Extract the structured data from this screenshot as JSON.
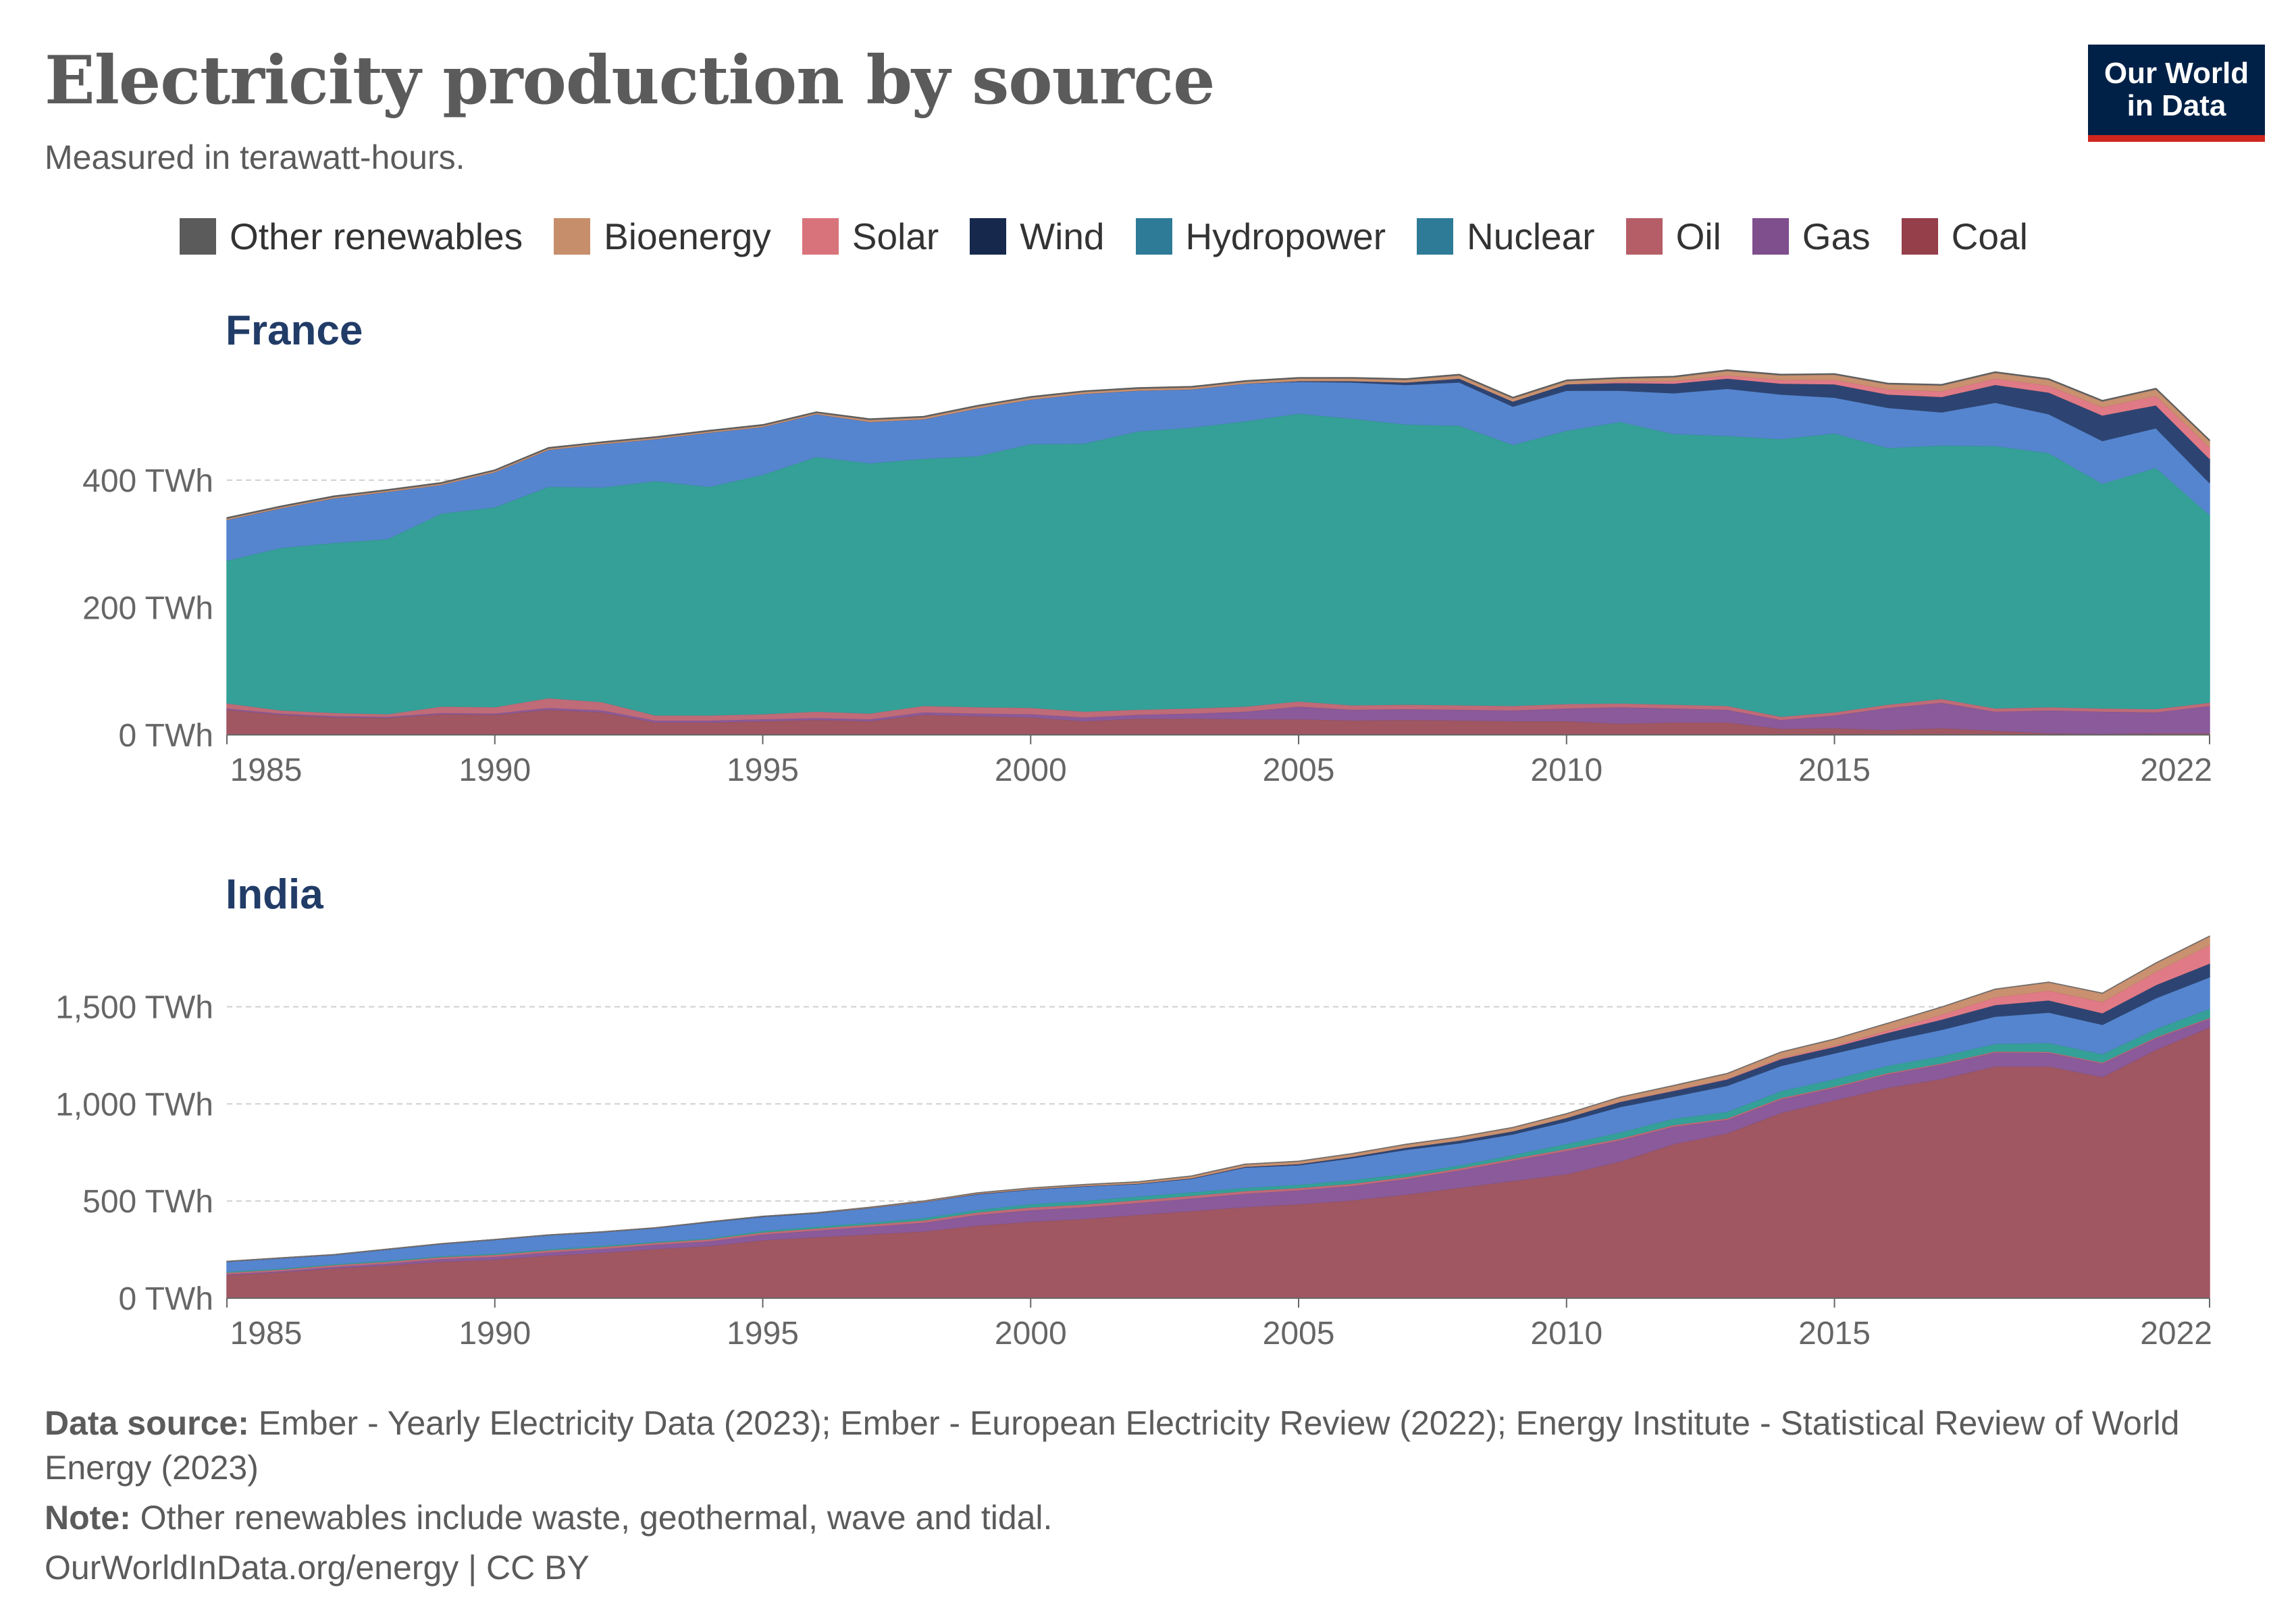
{
  "header": {
    "title": "Electricity production by source",
    "subtitle": "Measured in terawatt-hours."
  },
  "logo": {
    "line1": "Our World",
    "line2": "in Data",
    "bg": "#002147",
    "accent": "#ce261e"
  },
  "legend": [
    {
      "name": "Other renewables",
      "color": "#5b5b5b"
    },
    {
      "name": "Bioenergy",
      "color": "#c78e6b"
    },
    {
      "name": "Solar",
      "color": "#d9737b"
    },
    {
      "name": "Wind",
      "color": "#16294d"
    },
    {
      "name": "Hydropower",
      "color": "#2e7b97"
    },
    {
      "name": "Nuclear",
      "color": "#2e7b97"
    },
    {
      "name": "Oil",
      "color": "#b55e67"
    },
    {
      "name": "Gas",
      "color": "#7e4e8d"
    },
    {
      "name": "Coal",
      "color": "#943f4a"
    }
  ],
  "footer": {
    "source_label": "Data source:",
    "source_text": "Ember - Yearly Electricity Data (2023); Ember - European Electricity Review (2022); Energy Institute - Statistical Review of World Energy (2023)",
    "note_label": "Note:",
    "note_text": "Other renewables include waste, geothermal, wave and tidal.",
    "credit": "OurWorldInData.org/energy | CC BY"
  },
  "chart_data": [
    {
      "type": "area",
      "stacked": true,
      "title": "France",
      "xlabel": "",
      "ylabel": "",
      "x": [
        1985,
        1986,
        1987,
        1988,
        1989,
        1990,
        1991,
        1992,
        1993,
        1994,
        1995,
        1996,
        1997,
        1998,
        1999,
        2000,
        2001,
        2002,
        2003,
        2004,
        2005,
        2006,
        2007,
        2008,
        2009,
        2010,
        2011,
        2012,
        2013,
        2014,
        2015,
        2016,
        2017,
        2018,
        2019,
        2020,
        2021,
        2022
      ],
      "x_ticks": [
        "1985",
        "1990",
        "1995",
        "2000",
        "2005",
        "2010",
        "2015",
        "2022"
      ],
      "x_tick_values": [
        1985,
        1990,
        1995,
        2000,
        2005,
        2010,
        2015,
        2022
      ],
      "xlim": [
        1985,
        2022
      ],
      "ylim": [
        0,
        560
      ],
      "y_ticks": [
        0,
        200,
        400
      ],
      "y_tick_labels": [
        "0 TWh",
        "200 TWh",
        "400 TWh"
      ],
      "grid": true,
      "series": [
        {
          "name": "Coal",
          "color": "#a05762",
          "values": [
            40,
            32,
            28,
            27,
            33,
            32,
            40,
            36,
            20,
            20,
            22,
            24,
            22,
            32,
            30,
            28,
            22,
            26,
            26,
            25,
            25,
            23,
            24,
            23,
            22,
            22,
            18,
            20,
            20,
            10,
            11,
            8,
            11,
            7,
            3,
            2,
            3,
            3
          ]
        },
        {
          "name": "Gas",
          "color": "#8a5a9a",
          "values": [
            2,
            2,
            2,
            2,
            2,
            2,
            3,
            3,
            3,
            3,
            3,
            3,
            3,
            4,
            4,
            5,
            6,
            6,
            8,
            12,
            20,
            17,
            17,
            17,
            17,
            20,
            26,
            22,
            20,
            14,
            20,
            35,
            40,
            30,
            36,
            35,
            33,
            43
          ]
        },
        {
          "name": "Oil",
          "color": "#c06b78",
          "values": [
            8,
            5,
            5,
            4,
            10,
            10,
            15,
            13,
            8,
            8,
            8,
            10,
            9,
            10,
            10,
            10,
            9,
            8,
            8,
            8,
            8,
            7,
            7,
            7,
            7,
            7,
            6,
            6,
            6,
            5,
            5,
            5,
            6,
            5,
            5,
            5,
            5,
            5
          ]
        },
        {
          "name": "Nuclear",
          "color": "#35a098",
          "values": [
            224,
            255,
            267,
            275,
            303,
            314,
            332,
            337,
            368,
            359,
            376,
            400,
            393,
            388,
            394,
            414,
            421,
            437,
            441,
            448,
            452,
            450,
            440,
            439,
            410,
            429,
            442,
            425,
            424,
            436,
            438,
            403,
            398,
            412,
            399,
            353,
            379,
            295
          ]
        },
        {
          "name": "Hydropower",
          "color": "#5685cf",
          "values": [
            64,
            62,
            70,
            74,
            45,
            55,
            58,
            68,
            66,
            85,
            75,
            67,
            65,
            62,
            75,
            70,
            78,
            64,
            60,
            59,
            50,
            57,
            62,
            68,
            60,
            63,
            49,
            64,
            74,
            70,
            56,
            63,
            52,
            68,
            61,
            67,
            62,
            50
          ]
        },
        {
          "name": "Wind",
          "color": "#2d4472",
          "values": [
            0,
            0,
            0,
            0,
            0,
            0,
            0,
            0,
            0,
            0,
            0,
            0,
            0,
            0,
            0,
            0,
            0,
            0,
            0,
            0,
            1,
            2,
            4,
            6,
            8,
            10,
            12,
            15,
            16,
            17,
            21,
            21,
            24,
            28,
            34,
            40,
            36,
            38
          ]
        },
        {
          "name": "Solar",
          "color": "#e07a86",
          "values": [
            0,
            0,
            0,
            0,
            0,
            0,
            0,
            0,
            0,
            0,
            0,
            0,
            0,
            0,
            0,
            0,
            0,
            0,
            0,
            0,
            0,
            0,
            0,
            0,
            0,
            0,
            2,
            4,
            5,
            6,
            7,
            8,
            9,
            10,
            11,
            13,
            15,
            18
          ]
        },
        {
          "name": "Bioenergy",
          "color": "#c9916f",
          "values": [
            2,
            2,
            2,
            2,
            2,
            2,
            2,
            2,
            2,
            2,
            2,
            2,
            3,
            3,
            3,
            3,
            3,
            3,
            3,
            3,
            4,
            4,
            4,
            5,
            5,
            5,
            5,
            6,
            7,
            7,
            8,
            8,
            9,
            9,
            9,
            9,
            10,
            10
          ]
        },
        {
          "name": "Other renewables",
          "color": "#6f6f6f",
          "values": [
            1,
            1,
            1,
            1,
            1,
            1,
            1,
            1,
            1,
            1,
            1,
            1,
            1,
            1,
            1,
            1,
            1,
            1,
            1,
            1,
            1,
            1,
            1,
            1,
            1,
            1,
            1,
            1,
            1,
            1,
            1,
            1,
            1,
            1,
            1,
            1,
            1,
            1
          ]
        }
      ]
    },
    {
      "type": "area",
      "stacked": true,
      "title": "India",
      "xlabel": "",
      "ylabel": "",
      "x": [
        1985,
        1986,
        1987,
        1988,
        1989,
        1990,
        1991,
        1992,
        1993,
        1994,
        1995,
        1996,
        1997,
        1998,
        1999,
        2000,
        2001,
        2002,
        2003,
        2004,
        2005,
        2006,
        2007,
        2008,
        2009,
        2010,
        2011,
        2012,
        2013,
        2014,
        2015,
        2016,
        2017,
        2018,
        2019,
        2020,
        2021,
        2022
      ],
      "x_ticks": [
        "1985",
        "1990",
        "1995",
        "2000",
        "2005",
        "2010",
        "2015",
        "2022"
      ],
      "x_tick_values": [
        1985,
        1990,
        1995,
        2000,
        2005,
        2010,
        2015,
        2022
      ],
      "xlim": [
        1985,
        2022
      ],
      "ylim": [
        0,
        1850
      ],
      "y_ticks": [
        0,
        500,
        1000,
        1500
      ],
      "y_tick_labels": [
        "0 TWh",
        "500 TWh",
        "1,000 TWh",
        "1,500 TWh"
      ],
      "grid": true,
      "series": [
        {
          "name": "Coal",
          "color": "#a05762",
          "values": [
            120,
            135,
            155,
            170,
            190,
            200,
            220,
            235,
            255,
            270,
            300,
            315,
            330,
            345,
            375,
            395,
            410,
            430,
            450,
            470,
            485,
            505,
            535,
            570,
            605,
            640,
            705,
            795,
            850,
            955,
            1020,
            1085,
            1130,
            1195,
            1195,
            1140,
            1280,
            1395
          ]
        },
        {
          "name": "Gas",
          "color": "#8a5a9a",
          "values": [
            5,
            6,
            8,
            10,
            13,
            15,
            18,
            20,
            22,
            25,
            30,
            35,
            40,
            45,
            55,
            60,
            60,
            62,
            65,
            70,
            72,
            75,
            80,
            90,
            105,
            120,
            110,
            90,
            70,
            70,
            65,
            70,
            75,
            72,
            70,
            70,
            60,
            45
          ]
        },
        {
          "name": "Oil",
          "color": "#c06b78",
          "values": [
            8,
            8,
            9,
            9,
            10,
            10,
            10,
            10,
            10,
            10,
            10,
            11,
            11,
            12,
            13,
            14,
            14,
            14,
            14,
            13,
            12,
            11,
            10,
            10,
            10,
            10,
            8,
            8,
            7,
            7,
            6,
            6,
            5,
            5,
            5,
            5,
            5,
            5
          ]
        },
        {
          "name": "Nuclear",
          "color": "#35a098",
          "values": [
            5,
            5,
            5,
            6,
            5,
            6,
            5,
            7,
            5,
            5,
            8,
            9,
            10,
            12,
            13,
            17,
            19,
            19,
            18,
            17,
            17,
            19,
            17,
            15,
            19,
            26,
            32,
            33,
            34,
            36,
            38,
            38,
            38,
            39,
            46,
            43,
            43,
            46
          ]
        },
        {
          "name": "Hydropower",
          "color": "#5685cf",
          "values": [
            51,
            53,
            47,
            57,
            62,
            71,
            72,
            69,
            70,
            82,
            72,
            68,
            74,
            82,
            80,
            74,
            74,
            64,
            69,
            104,
            100,
            112,
            123,
            114,
            106,
            114,
            131,
            113,
            134,
            129,
            133,
            126,
            135,
            140,
            156,
            151,
            158,
            163
          ]
        },
        {
          "name": "Wind",
          "color": "#2d4472",
          "values": [
            0,
            0,
            0,
            0,
            0,
            0,
            0,
            0,
            0,
            1,
            1,
            1,
            1,
            1,
            2,
            2,
            2,
            2,
            3,
            4,
            6,
            8,
            11,
            14,
            16,
            20,
            26,
            30,
            33,
            35,
            33,
            43,
            53,
            60,
            63,
            60,
            68,
            70
          ]
        },
        {
          "name": "Solar",
          "color": "#e07a86",
          "values": [
            0,
            0,
            0,
            0,
            0,
            0,
            0,
            0,
            0,
            0,
            0,
            0,
            0,
            0,
            0,
            0,
            0,
            0,
            0,
            0,
            0,
            0,
            0,
            0,
            0,
            0,
            1,
            2,
            3,
            5,
            7,
            13,
            26,
            40,
            50,
            58,
            68,
            95
          ]
        },
        {
          "name": "Bioenergy",
          "color": "#c9916f",
          "values": [
            0,
            0,
            0,
            0,
            0,
            0,
            0,
            0,
            0,
            0,
            0,
            1,
            2,
            3,
            4,
            5,
            6,
            8,
            10,
            12,
            13,
            14,
            16,
            17,
            18,
            20,
            22,
            24,
            26,
            30,
            32,
            35,
            37,
            40,
            42,
            43,
            44,
            45
          ]
        },
        {
          "name": "Other renewables",
          "color": "#6f6f6f",
          "values": [
            0,
            0,
            0,
            0,
            0,
            0,
            0,
            0,
            0,
            0,
            0,
            0,
            0,
            0,
            0,
            0,
            0,
            0,
            0,
            0,
            0,
            0,
            0,
            0,
            0,
            0,
            0,
            0,
            0,
            0,
            0,
            0,
            0,
            0,
            0,
            0,
            0,
            0
          ]
        }
      ]
    }
  ]
}
